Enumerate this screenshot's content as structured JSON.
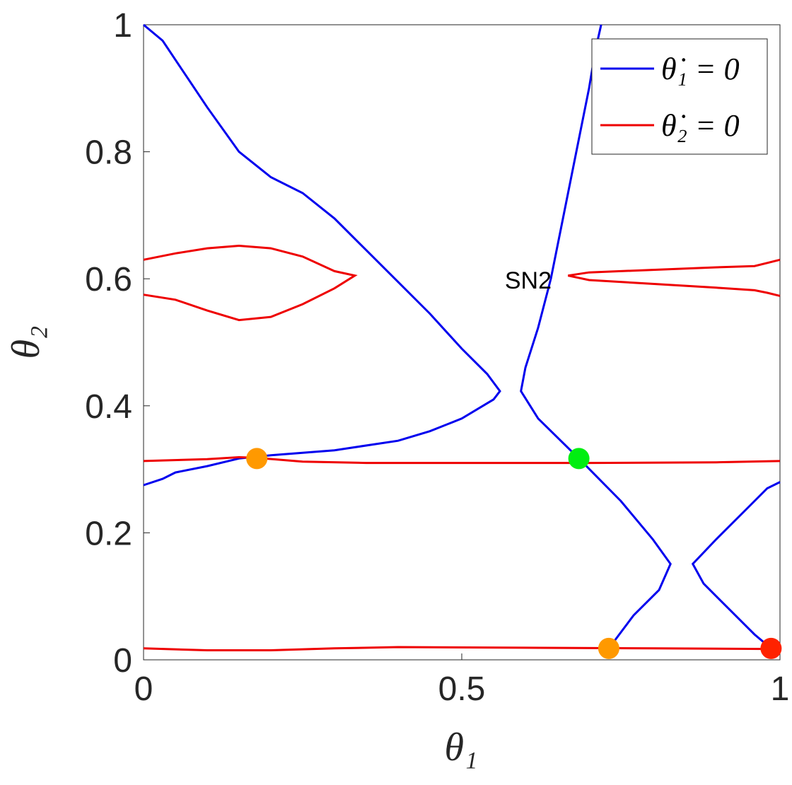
{
  "chart_data": {
    "type": "line",
    "xlabel": "θ₁",
    "ylabel": "θ₂",
    "xlim": [
      0,
      1
    ],
    "ylim": [
      0,
      1
    ],
    "xticks": [
      0,
      0.5,
      1
    ],
    "yticks": [
      0,
      0.2,
      0.4,
      0.6,
      0.8,
      1
    ],
    "legend": "upper right",
    "annotations": [
      "SN2"
    ],
    "series": [
      {
        "name": "θ̇₁ = 0",
        "color": "#0000ee",
        "x": [
          0,
          0.03,
          0.06,
          0.07,
          0.1,
          0.15,
          0.2,
          0.25,
          0.3,
          0.35,
          0.4,
          0.45,
          0.5,
          0.54,
          0.56,
          0.55,
          0.5,
          0.45,
          0.4,
          0.3,
          0.2,
          0.15,
          0.1,
          0.05,
          0.03,
          0,
          null,
          0.719,
          0.71,
          0.7,
          0.68,
          0.66,
          0.64,
          0.62,
          0.6,
          0.593,
          0.62,
          0.684,
          0.75,
          0.8,
          0.828,
          0.81,
          0.77,
          0.74,
          0.731,
          null,
          1,
          0.98,
          0.95,
          0.9,
          0.863,
          0.88,
          0.92,
          0.96,
          0.986
        ],
        "values": [
          1,
          0.975,
          0.93,
          0.915,
          0.87,
          0.8,
          0.76,
          0.735,
          0.695,
          0.645,
          0.595,
          0.545,
          0.49,
          0.45,
          0.423,
          0.41,
          0.38,
          0.36,
          0.345,
          0.33,
          0.322,
          0.317,
          0.305,
          0.295,
          0.285,
          0.275,
          null,
          1,
          0.96,
          0.9,
          0.8,
          0.7,
          0.6,
          0.523,
          0.46,
          0.423,
          0.38,
          0.317,
          0.25,
          0.19,
          0.151,
          0.11,
          0.07,
          0.03,
          0.018,
          null,
          0.28,
          0.27,
          0.24,
          0.19,
          0.151,
          0.12,
          0.08,
          0.04,
          0.018
        ]
      },
      {
        "name": "θ̇₂ = 0",
        "color": "#ee0000",
        "x": [
          0,
          0.05,
          0.1,
          0.15,
          0.2,
          0.25,
          0.3,
          0.332,
          0.3,
          0.25,
          0.2,
          0.15,
          0.1,
          0.05,
          0,
          null,
          1,
          0.98,
          0.96,
          0.9,
          0.8,
          0.7,
          0.667,
          0.7,
          0.8,
          0.9,
          0.96,
          0.98,
          1,
          null,
          0,
          0.1,
          0.15,
          0.178,
          0.25,
          0.35,
          0.5,
          0.7,
          0.9,
          1,
          null,
          0,
          0.1,
          0.2,
          0.3,
          0.4,
          0.6,
          0.8,
          1
        ],
        "values": [
          0.63,
          0.64,
          0.648,
          0.652,
          0.648,
          0.635,
          0.612,
          0.605,
          0.585,
          0.56,
          0.54,
          0.535,
          0.55,
          0.567,
          0.575,
          null,
          0.63,
          0.625,
          0.62,
          0.618,
          0.614,
          0.61,
          0.605,
          0.598,
          0.592,
          0.586,
          0.582,
          0.578,
          0.573,
          null,
          0.313,
          0.316,
          0.319,
          0.318,
          0.312,
          0.31,
          0.31,
          0.31,
          0.311,
          0.313,
          null,
          0.018,
          0.015,
          0.015,
          0.018,
          0.02,
          0.019,
          0.018,
          0.017
        ]
      }
    ],
    "markers": [
      {
        "x": 0.178,
        "y": 0.317,
        "color": "#ff9900"
      },
      {
        "x": 0.684,
        "y": 0.317,
        "color": "#00ee11"
      },
      {
        "x": 0.731,
        "y": 0.018,
        "color": "#ff9900"
      },
      {
        "x": 0.986,
        "y": 0.018,
        "color": "#ff2200"
      }
    ]
  }
}
